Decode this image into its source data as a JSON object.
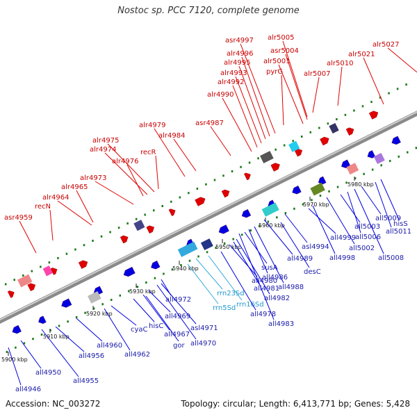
{
  "title": "Nostoc sp. PCC 7120, complete genome",
  "footer": {
    "accession": "Accession: NC_003272",
    "summary": "Topology: circular; Length: 6,413,771 bp; Genes: 5,428"
  },
  "colors": {
    "forward": "#e00000",
    "reverse": "#0000e0",
    "rna": "#33aadd",
    "backbone": "#8a8a8a",
    "ticks_dots": "#1a7a1a"
  },
  "ticks": [
    "5900 kbp",
    "5910 kbp",
    "5920 kbp",
    "5930 kbp",
    "5940 kbp",
    "5950 kbp",
    "5960 kbp",
    "5970 kbp",
    "5980 kbp"
  ],
  "forward_labels": [
    "asr4959",
    "recN",
    "alr4964",
    "alr4965",
    "alr4973",
    "alr4976",
    "alr4974",
    "alr4975",
    "recR",
    "alr4979",
    "alr4984",
    "asr4987",
    "alr4990",
    "alr4992",
    "alr4993",
    "alr4995",
    "alr4996",
    "asr4997",
    "alr5001",
    "asr5004",
    "pyrG",
    "alr5005",
    "alr5007",
    "alr5010",
    "alr5021",
    "alr5027"
  ],
  "reverse_labels": [
    "all4946",
    "all4950",
    "all4955",
    "all4956",
    "all4960",
    "all4962",
    "cyaC",
    "hisC",
    "gor",
    "all4967",
    "all4969",
    "all4970",
    "asl4971",
    "all4972",
    "rrn5Sd",
    "rrn23Sd",
    "rrn16Sd",
    "all4978",
    "all4980",
    "all4981",
    "all4982",
    "all4983",
    "susA",
    "all4986",
    "all4988",
    "desC",
    "all4989",
    "asl4994",
    "all4999",
    "all4998",
    "all5002",
    "all5003",
    "all5006",
    "all5008",
    "all5009",
    "all5011",
    "hisS"
  ]
}
